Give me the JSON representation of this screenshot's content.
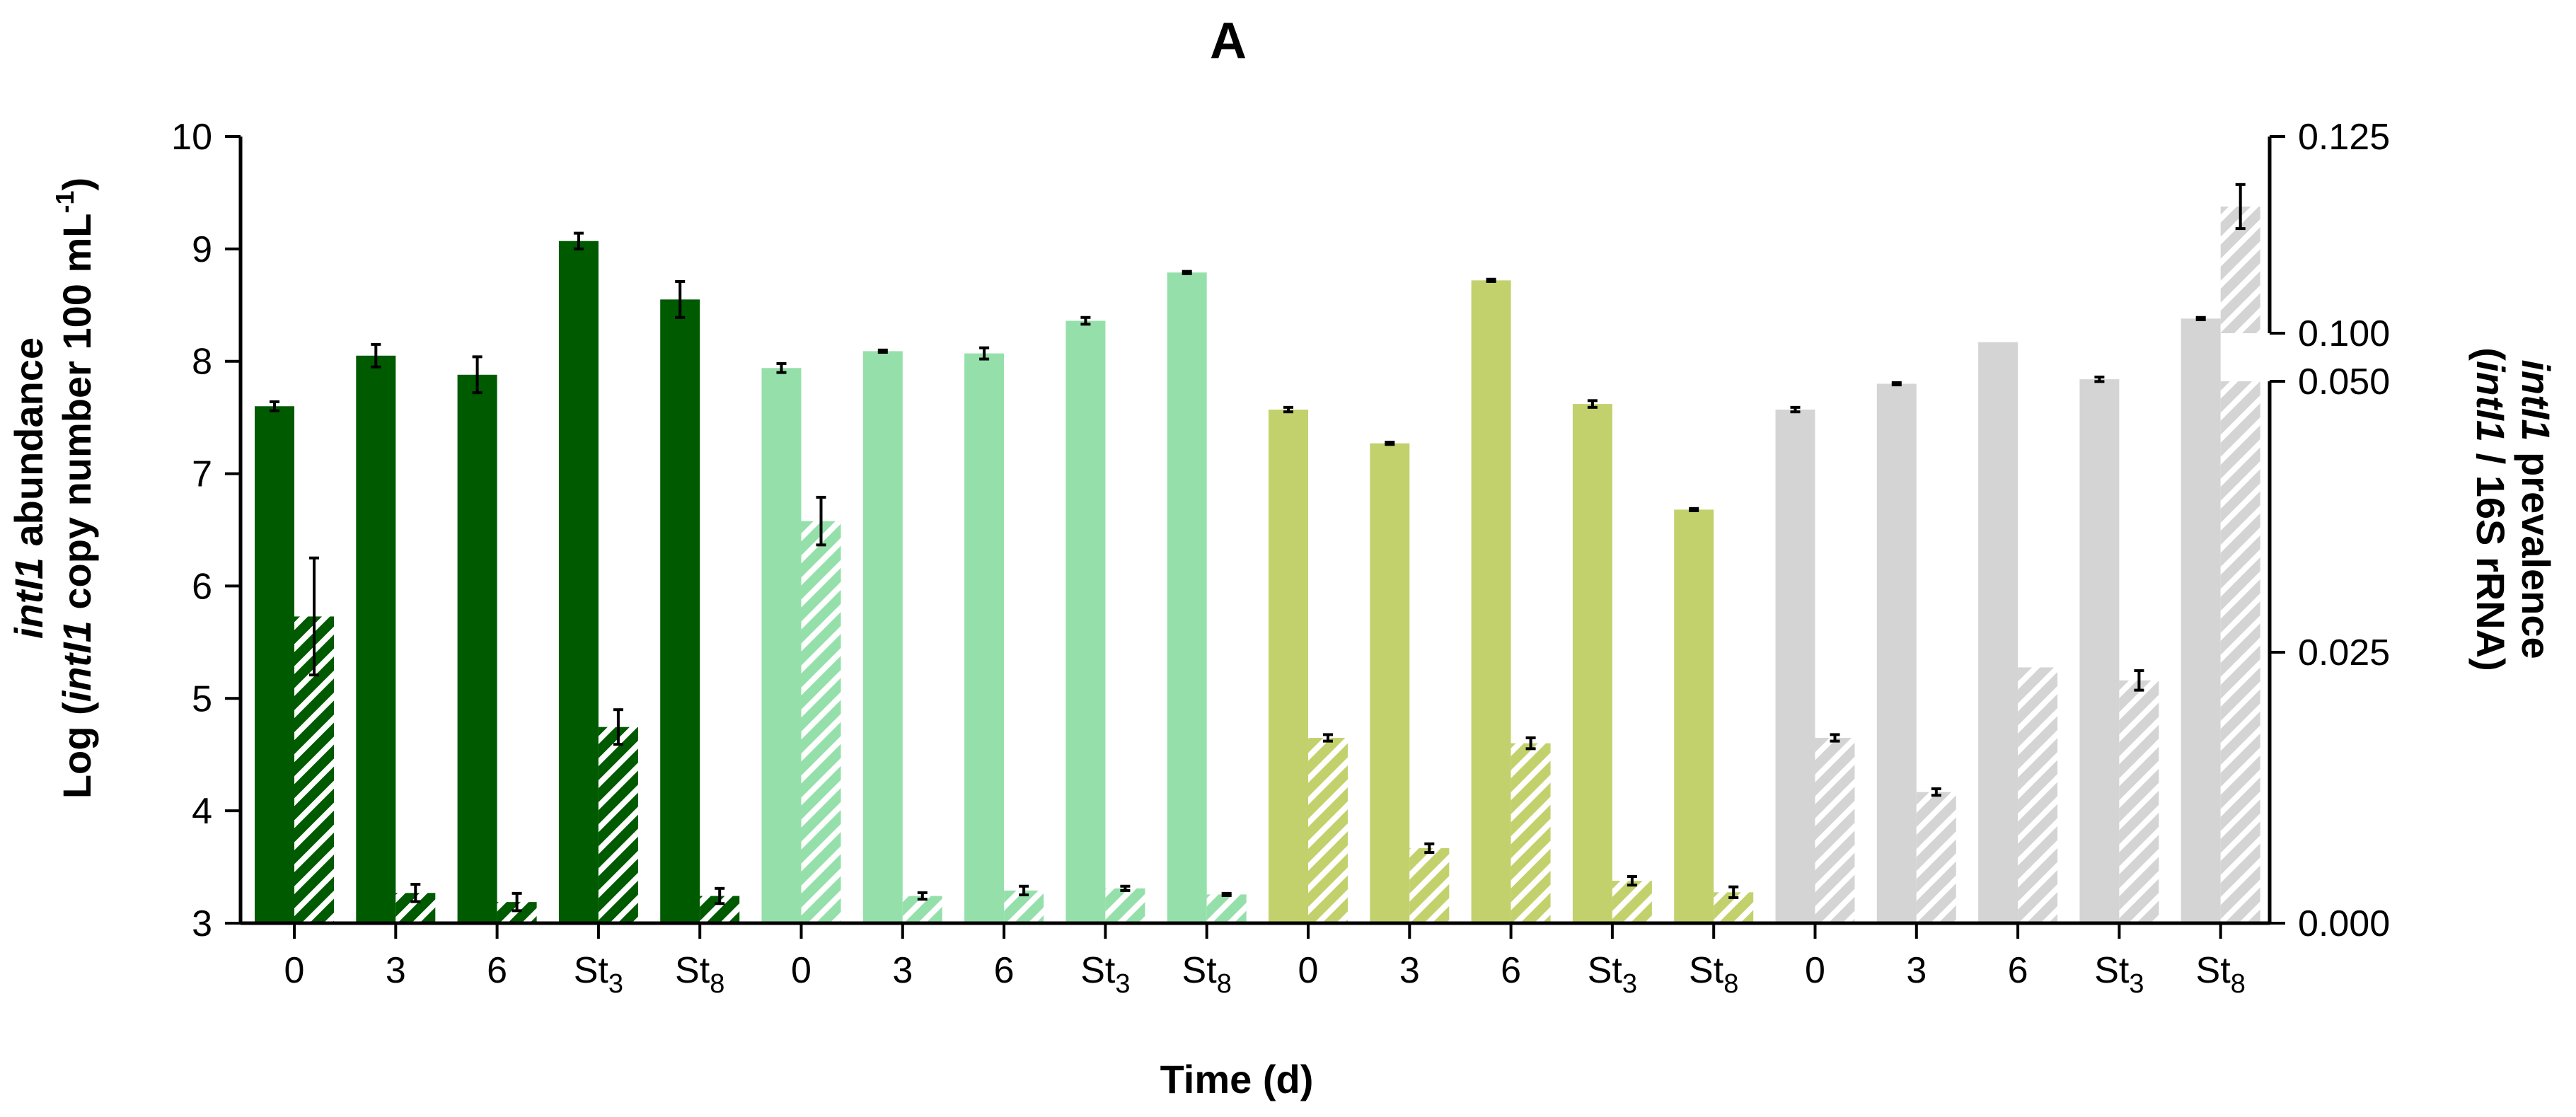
{
  "chart_data": {
    "type": "bar",
    "title": "A",
    "xlabel": "Time (d)",
    "ylabel_left": {
      "line1_italic": "intI1",
      "line1_rest": " abundance",
      "line2_prefix": "Log (",
      "line2_italic": "intI1",
      "line2_rest": " copy number 100 mL",
      "line2_sup": "-1",
      "line2_close": ")"
    },
    "ylabel_right": {
      "line1_italic": "intI1",
      "line1_rest": " prevalence",
      "line2_prefix": "(",
      "line2_italic": "intI1",
      "line2_rest": " / 16S rRNA)"
    },
    "ylim_left": [
      3,
      10
    ],
    "yticks_left": [
      "3",
      "4",
      "5",
      "6",
      "7",
      "8",
      "9",
      "10"
    ],
    "ylim_right_lower": [
      0.0,
      0.05
    ],
    "ylim_right_upper": [
      0.1,
      0.125
    ],
    "yticks_right": [
      "0.000",
      "0.025",
      "0.050",
      "0.100",
      "0.125"
    ],
    "legend": "none",
    "groups": [
      {
        "color": "#005a00",
        "categories": [
          {
            "base": "0",
            "sub": ""
          },
          {
            "base": "3",
            "sub": ""
          },
          {
            "base": "6",
            "sub": ""
          },
          {
            "base": "St",
            "sub": "3"
          },
          {
            "base": "St",
            "sub": "8"
          }
        ],
        "abundance": [
          7.6,
          8.05,
          7.88,
          9.07,
          8.55
        ],
        "abundance_err": [
          0.04,
          0.1,
          0.16,
          0.07,
          0.16
        ],
        "prevalence": [
          0.0283,
          0.00279,
          0.00195,
          0.0181,
          0.00251
        ],
        "prevalence_err": [
          0.0054,
          0.0008,
          0.0008,
          0.0016,
          0.0007
        ]
      },
      {
        "color": "#95e0aa",
        "categories": [
          {
            "base": "0",
            "sub": ""
          },
          {
            "base": "3",
            "sub": ""
          },
          {
            "base": "6",
            "sub": ""
          },
          {
            "base": "St",
            "sub": "3"
          },
          {
            "base": "St",
            "sub": "8"
          }
        ],
        "abundance": [
          7.94,
          8.09,
          8.07,
          8.36,
          8.79
        ],
        "abundance_err": [
          0.04,
          0.01,
          0.05,
          0.03,
          0.01
        ],
        "prevalence": [
          0.0371,
          0.00251,
          0.00301,
          0.00321,
          0.00265
        ],
        "prevalence_err": [
          0.0022,
          0.0003,
          0.0004,
          0.0002,
          0.0001
        ]
      },
      {
        "color": "#c3d16d",
        "categories": [
          {
            "base": "0",
            "sub": ""
          },
          {
            "base": "3",
            "sub": ""
          },
          {
            "base": "6",
            "sub": ""
          },
          {
            "base": "St",
            "sub": "3"
          },
          {
            "base": "St",
            "sub": "8"
          }
        ],
        "abundance": [
          7.57,
          7.27,
          8.72,
          7.62,
          6.68
        ],
        "abundance_err": [
          0.02,
          0.01,
          0.01,
          0.03,
          0.01
        ],
        "prevalence": [
          0.0171,
          0.00692,
          0.0166,
          0.00391,
          0.00285
        ],
        "prevalence_err": [
          0.0003,
          0.0004,
          0.0005,
          0.0004,
          0.0005
        ]
      },
      {
        "color": "#d4d4d4",
        "categories": [
          {
            "base": "0",
            "sub": ""
          },
          {
            "base": "3",
            "sub": ""
          },
          {
            "base": "6",
            "sub": ""
          },
          {
            "base": "St",
            "sub": "3"
          },
          {
            "base": "St",
            "sub": "8"
          }
        ],
        "abundance": [
          7.57,
          7.8,
          8.17,
          7.84,
          8.38
        ],
        "abundance_err": [
          0.02,
          0.01,
          0,
          0.02,
          0.01
        ],
        "prevalence": [
          0.0171,
          0.0121,
          0.0236,
          0.0224,
          0.1161
        ],
        "prevalence_err": [
          0.0003,
          0.0003,
          0,
          0.0009,
          0.0028
        ]
      }
    ]
  }
}
